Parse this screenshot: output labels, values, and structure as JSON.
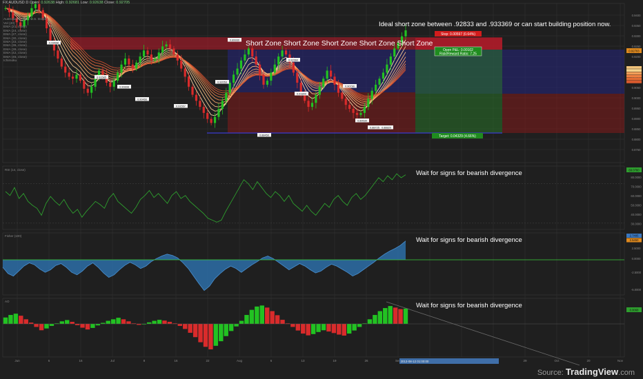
{
  "header": {
    "symbol": "FX:AUDUSD",
    "interval": "D",
    "open_label": "Open:",
    "open_value": "0.92638",
    "high_label": "High:",
    "high_value": "0.92681",
    "low_label": "Low:",
    "low_value": "0.92638",
    "close_label": "Close:",
    "close_value": "0.92705",
    "instrument": "Australian Dollar / U.S. Dollar"
  },
  "legend_items": [
    "Vol (20)",
    "EMA (21, close)",
    "EMA (24, close)",
    "EMA (27, close)",
    "EMA (30, close)",
    "EMA (33, close)",
    "EMA (36, close)",
    "EMA (39, close)",
    "EMA (42, close)",
    "EMA (45, close)",
    "Ichimoku"
  ],
  "annotations": {
    "top": "Ideal short zone between .92833 and .933369 or can start building position now.",
    "zone": "Short Zone Short Zone Short Zone Short Zone Short Zone",
    "rsi": "Wait for signs for bearish divergence",
    "fisher": "Wait for signs for bearish divergence",
    "ao": "Wait for signs for bearish divergence"
  },
  "position_tool": {
    "stop_label": "Stop: 0.00597 (0.64%)",
    "open_pnl_label": "Open P&L: 0.00102",
    "risk_reward_label": "Risk/Reward Ratio: 7.25",
    "target_label": "Target: 0.04329 (4.66%)"
  },
  "pane_labels": {
    "rsi": "RSI (14, close)",
    "fisher": "Fisher (100)",
    "ao": "AO"
  },
  "price_axis": [
    "0.9400",
    "0.9350",
    "0.9300",
    "0.9250",
    "0.9200",
    "0.9150",
    "0.9100",
    "0.9050",
    "0.9000",
    "0.8950",
    "0.8900",
    "0.8850",
    "0.8800",
    "0.8750"
  ],
  "price_badge": "0.92703",
  "rsi_axis": [
    "80.0000",
    "70.0000",
    "60.0000",
    "50.0000",
    "40.0000",
    "30.0000"
  ],
  "rsi_badge": "69.0780",
  "fisher_axis": [
    "2.5000",
    "0.0000",
    "-2.5000",
    "-5.0000"
  ],
  "fisher_badges": [
    "2.7485",
    "2.5450"
  ],
  "ao_badge": "0.0068",
  "time_axis": [
    "Jun",
    "6",
    "16",
    "Jul",
    "8",
    "16",
    "22",
    "Aug",
    "6",
    "13",
    "19",
    "26",
    "Sep",
    "8",
    "15",
    "22",
    "29",
    "Oct",
    "20",
    "Nov"
  ],
  "time_badge": "2013-08-12 01:00:00",
  "source": {
    "prefix": "Source:",
    "brand": "TradingView",
    "suffix": ".com"
  },
  "colors": {
    "background": "#1f1f1f",
    "grid": "#333333",
    "bull": "#22c222",
    "bear": "#d92b2b",
    "fisher_fill": "#2d6fa8",
    "rsi_line": "#2e9f2e",
    "short_zone": "#c0192a",
    "profit_zone": "#2a7a2a",
    "loss_zone": "#8b1a1a",
    "blue_zone": "#25257e"
  },
  "chart_data": [
    {
      "type": "line",
      "title": "AUDUSD Daily",
      "ylim": [
        0.875,
        0.94
      ],
      "series": [
        {
          "name": "AUDUSD",
          "values": [
            0.938,
            0.936,
            0.933,
            0.931,
            0.929,
            0.932,
            0.934,
            0.938,
            0.94,
            0.937,
            0.933,
            0.928,
            0.922,
            0.917,
            0.913,
            0.909,
            0.906,
            0.904,
            0.903,
            0.905,
            0.902,
            0.898,
            0.896,
            0.899,
            0.903,
            0.907,
            0.905,
            0.901,
            0.899,
            0.902,
            0.906,
            0.91,
            0.913,
            0.91,
            0.908,
            0.911,
            0.914,
            0.917,
            0.915,
            0.912,
            0.913,
            0.916,
            0.919,
            0.92,
            0.918,
            0.915,
            0.912,
            0.908,
            0.904,
            0.899,
            0.895,
            0.892,
            0.889,
            0.886,
            0.883,
            0.881,
            0.884,
            0.888,
            0.892,
            0.896,
            0.901,
            0.905,
            0.908,
            0.912,
            0.915,
            0.918,
            0.914,
            0.91,
            0.905,
            0.9,
            0.902,
            0.906,
            0.91,
            0.914,
            0.917,
            0.915,
            0.911,
            0.906,
            0.901,
            0.896,
            0.892,
            0.889,
            0.891,
            0.895,
            0.899,
            0.903,
            0.907,
            0.904,
            0.9,
            0.896,
            0.893,
            0.89,
            0.888,
            0.886,
            0.885,
            0.886,
            0.889,
            0.893,
            0.897,
            0.9,
            0.903,
            0.906,
            0.91,
            0.914,
            0.918,
            0.921,
            0.924,
            0.927
          ]
        }
      ],
      "price_labels": [
        "0.93668",
        "0.91585",
        "0.90898",
        "0.90466",
        "0.91557",
        "0.92053",
        "0.89930",
        "0.88450",
        "0.91560",
        "0.91800",
        "0.90790",
        "0.89530",
        "0.88725",
        "0.88820"
      ]
    },
    {
      "type": "line",
      "title": "RSI (14, close)",
      "ylim": [
        25,
        85
      ],
      "series": [
        {
          "name": "RSI",
          "values": [
            62,
            58,
            66,
            55,
            60,
            52,
            48,
            45,
            38,
            50,
            57,
            52,
            48,
            54,
            46,
            40,
            44,
            36,
            42,
            47,
            52,
            49,
            45,
            55,
            60,
            52,
            48,
            44,
            40,
            46,
            54,
            58,
            63,
            56,
            60,
            55,
            50,
            58,
            62,
            55,
            58,
            52,
            48,
            44,
            40,
            35,
            33,
            31,
            33,
            42,
            50,
            58,
            66,
            74,
            70,
            64,
            72,
            66,
            60,
            56,
            62,
            58,
            52,
            58,
            50,
            46,
            42,
            48,
            42,
            38,
            44,
            50,
            46,
            54,
            58,
            52,
            48,
            56,
            60,
            54,
            58,
            64,
            70,
            76,
            72,
            78,
            74,
            80,
            76,
            79
          ]
        }
      ]
    },
    {
      "type": "area",
      "title": "Fisher (100)",
      "ylim": [
        -5.5,
        3.5
      ],
      "series": [
        {
          "name": "Fisher",
          "values": [
            -1.2,
            -2.2,
            -2.6,
            -1.8,
            -1.0,
            -0.5,
            -0.8,
            -1.5,
            -2.0,
            -1.6,
            -0.9,
            -0.6,
            -1.2,
            -2.0,
            -2.4,
            -1.8,
            -1.0,
            -0.5,
            -1.2,
            -2.1,
            -2.8,
            -2.4,
            -1.6,
            -0.9,
            -0.4,
            -0.8,
            -1.4,
            -1.0,
            -0.3,
            0.2,
            0.6,
            0.9,
            0.7,
            0.3,
            -0.5,
            -1.4,
            -2.6,
            -3.8,
            -4.9,
            -4.2,
            -3.0,
            -2.2,
            -1.5,
            -1.0,
            -1.4,
            -2.0,
            -1.4,
            -0.8,
            -0.3,
            0.3,
            0.6,
            0.2,
            -0.4,
            -1.0,
            -1.6,
            -1.1,
            -0.6,
            -1.0,
            -1.6,
            -2.1,
            -1.8,
            -1.2,
            -0.7,
            -1.0,
            -1.5,
            -2.0,
            -2.6,
            -2.2,
            -1.6,
            -1.0,
            -0.4,
            0.3,
            0.9,
            1.4,
            1.8,
            2.3,
            3.0
          ]
        }
      ]
    },
    {
      "type": "bar",
      "title": "AO",
      "ylim": [
        -0.011,
        0.009
      ],
      "series": [
        {
          "name": "AO",
          "values": [
            0.0025,
            0.0035,
            0.004,
            0.0032,
            0.0018,
            0.0005,
            -0.0012,
            -0.0025,
            -0.0018,
            -0.0008,
            0.0002,
            0.001,
            0.0015,
            0.0008,
            -0.0005,
            -0.0015,
            -0.0022,
            -0.0016,
            -0.0006,
            0.0004,
            0.0012,
            0.0018,
            0.0024,
            0.0018,
            0.001,
            0.0002,
            -0.0004,
            -0.0001,
            0.0006,
            0.0012,
            0.0016,
            0.0013,
            0.0008,
            0.0002,
            -0.0008,
            -0.002,
            -0.0035,
            -0.0052,
            -0.0072,
            -0.009,
            -0.01,
            -0.0086,
            -0.0068,
            -0.0048,
            -0.0028,
            -0.001,
            0.0012,
            0.0035,
            0.0055,
            0.0068,
            0.0072,
            0.0064,
            0.005,
            0.0034,
            0.0016,
            0.0002,
            -0.0012,
            -0.0026,
            -0.0038,
            -0.0045,
            -0.004,
            -0.0032,
            -0.0025,
            -0.003,
            -0.0036,
            -0.0042,
            -0.0046,
            -0.0038,
            -0.0026,
            -0.0012,
            0.0002,
            0.0018,
            0.0035,
            0.005,
            0.0062,
            0.007,
            0.0064,
            0.0058,
            0.006
          ]
        }
      ]
    }
  ]
}
